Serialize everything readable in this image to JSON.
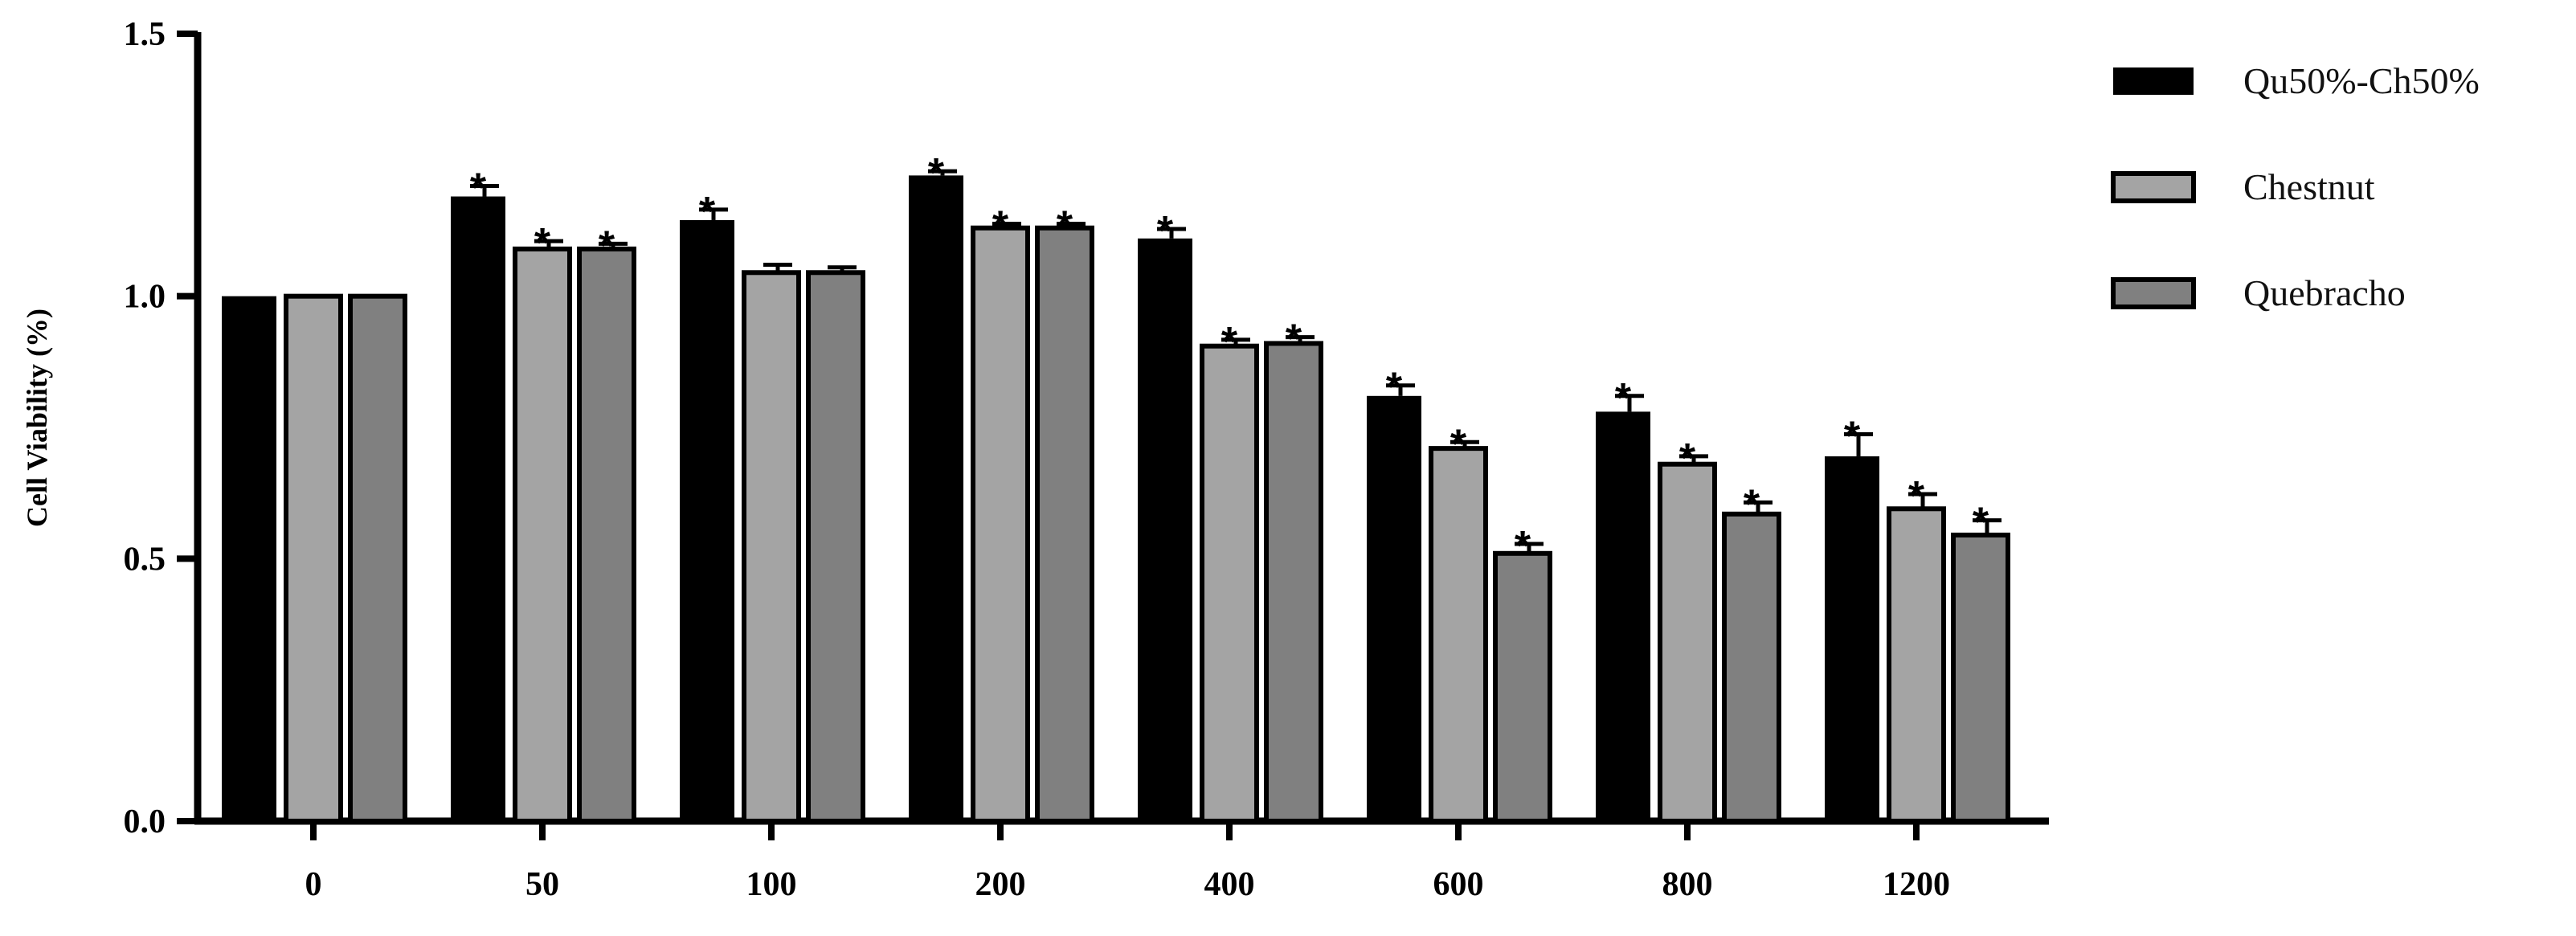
{
  "chart_data": {
    "type": "bar",
    "ylabel": "Cell Viability (%)",
    "xlabel": "",
    "ylim": [
      0,
      1.5
    ],
    "yticks": [
      0.0,
      0.5,
      1.0,
      1.5
    ],
    "ytick_labels": [
      "0.0",
      "0.5",
      "1.0",
      "1.5"
    ],
    "categories": [
      "0",
      "50",
      "100",
      "200",
      "400",
      "600",
      "800",
      "1200"
    ],
    "legend_position": "top-right",
    "grid": false,
    "series": [
      {
        "name": "Qu50%-Ch50%",
        "color": "#000000",
        "values": [
          1.0,
          1.19,
          1.145,
          1.23,
          1.11,
          0.81,
          0.78,
          0.695
        ],
        "errors": [
          0.0,
          0.02,
          0.02,
          0.008,
          0.018,
          0.02,
          0.03,
          0.042
        ],
        "significant": [
          false,
          true,
          true,
          true,
          true,
          true,
          true,
          true
        ]
      },
      {
        "name": "Chestnut",
        "color": "#a4a4a4",
        "values": [
          1.0,
          1.09,
          1.045,
          1.13,
          0.905,
          0.71,
          0.68,
          0.595
        ],
        "errors": [
          0.0,
          0.015,
          0.015,
          0.008,
          0.012,
          0.012,
          0.015,
          0.028
        ],
        "significant": [
          false,
          true,
          false,
          true,
          true,
          true,
          true,
          true
        ]
      },
      {
        "name": "Quebracho",
        "color": "#808080",
        "values": [
          1.0,
          1.09,
          1.045,
          1.13,
          0.91,
          0.51,
          0.585,
          0.545
        ],
        "errors": [
          0.0,
          0.01,
          0.01,
          0.008,
          0.012,
          0.018,
          0.022,
          0.028
        ],
        "significant": [
          false,
          true,
          false,
          true,
          true,
          true,
          true,
          true
        ]
      }
    ],
    "significance_marker": "*"
  }
}
